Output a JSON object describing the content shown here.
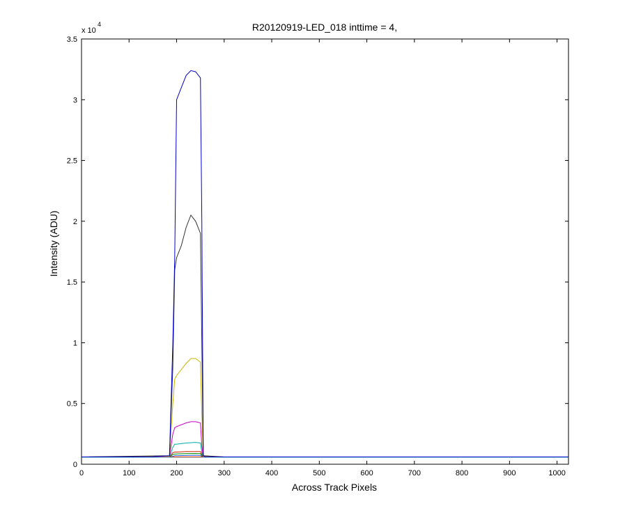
{
  "chart_data": {
    "type": "line",
    "title": "R20120919-LED_018 inttime = 4,",
    "xlabel": "Across Track Pixels",
    "ylabel": "Intensity (ADU)",
    "y_multiplier": {
      "base": "x 10",
      "exponent": "4"
    },
    "xlim": [
      0,
      1024
    ],
    "ylim": [
      0,
      35000
    ],
    "grid": false,
    "xticks": [
      0,
      100,
      200,
      300,
      400,
      500,
      600,
      700,
      800,
      900,
      1000
    ],
    "yticks": [
      0,
      5000,
      10000,
      15000,
      20000,
      25000,
      30000,
      35000
    ],
    "xtick_labels": [
      "0",
      "100",
      "200",
      "300",
      "400",
      "500",
      "600",
      "700",
      "800",
      "900",
      "1000"
    ],
    "ytick_labels": [
      "0",
      "0.5",
      "1",
      "1.5",
      "2",
      "2.5",
      "3",
      "3.5"
    ],
    "series": [
      {
        "color": "#0000cc",
        "x": [
          0,
          90,
          150,
          185,
          192,
          196,
          200,
          210,
          220,
          230,
          240,
          250,
          253,
          256,
          260,
          300,
          340,
          400,
          1024
        ],
        "y": [
          600,
          600,
          620,
          700,
          10000,
          17000,
          30000,
          31000,
          32000,
          32400,
          32300,
          31800,
          20000,
          700,
          620,
          600,
          600,
          600,
          600
        ]
      },
      {
        "color": "#333333",
        "x": [
          0,
          185,
          192,
          196,
          200,
          210,
          220,
          230,
          240,
          250,
          253,
          256,
          300,
          1024
        ],
        "y": [
          600,
          700,
          8000,
          16000,
          17000,
          18000,
          19500,
          20500,
          20000,
          19000,
          10000,
          700,
          600,
          600
        ]
      },
      {
        "color": "#c8b400",
        "x": [
          0,
          185,
          192,
          196,
          200,
          210,
          220,
          230,
          240,
          250,
          253,
          256,
          300,
          1024
        ],
        "y": [
          600,
          650,
          5000,
          7000,
          7300,
          7800,
          8300,
          8700,
          8700,
          8400,
          4000,
          650,
          600,
          600
        ]
      },
      {
        "color": "#cc00cc",
        "x": [
          0,
          185,
          192,
          196,
          200,
          220,
          230,
          240,
          250,
          253,
          256,
          300,
          1024
        ],
        "y": [
          600,
          620,
          2500,
          3000,
          3100,
          3400,
          3500,
          3500,
          3400,
          1500,
          620,
          600,
          600
        ]
      },
      {
        "color": "#00aaaa",
        "x": [
          0,
          185,
          192,
          196,
          200,
          220,
          240,
          250,
          253,
          256,
          300,
          1024
        ],
        "y": [
          600,
          610,
          1400,
          1650,
          1650,
          1750,
          1800,
          1750,
          1000,
          610,
          600,
          600
        ]
      },
      {
        "color": "#cc2200",
        "x": [
          0,
          185,
          192,
          196,
          200,
          220,
          240,
          250,
          253,
          256,
          300,
          1024
        ],
        "y": [
          600,
          605,
          950,
          1000,
          1000,
          1050,
          1050,
          1050,
          800,
          605,
          600,
          600
        ]
      },
      {
        "color": "#008800",
        "x": [
          0,
          185,
          192,
          196,
          200,
          220,
          240,
          250,
          253,
          256,
          300,
          1024
        ],
        "y": [
          600,
          602,
          800,
          850,
          850,
          870,
          880,
          870,
          700,
          602,
          600,
          600
        ]
      },
      {
        "color": "#2255cc",
        "x": [
          0,
          185,
          192,
          196,
          200,
          220,
          240,
          250,
          253,
          256,
          300,
          1024
        ],
        "y": [
          600,
          600,
          650,
          700,
          700,
          720,
          730,
          720,
          650,
          600,
          600,
          600
        ]
      },
      {
        "color": "#ee3300",
        "x": [
          0,
          1024
        ],
        "y": [
          600,
          600
        ]
      },
      {
        "color": "#00aaaa",
        "x": [
          0,
          1024
        ],
        "y": [
          580,
          580
        ]
      }
    ]
  }
}
